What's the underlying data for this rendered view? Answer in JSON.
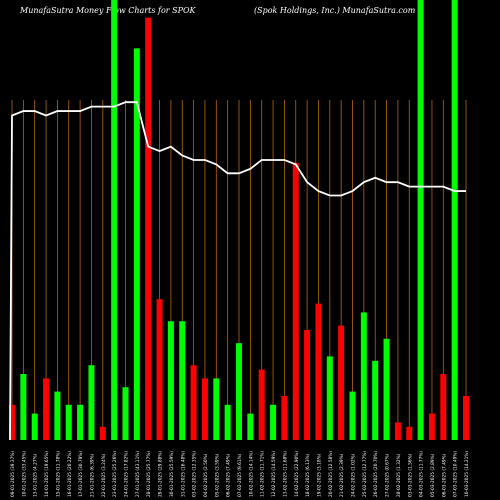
{
  "header": {
    "left": "MunafaSutra  Money Flow  Charts for SPOK",
    "right": "(Spok Holdings, Inc.) MunafaSutra.com"
  },
  "colors": {
    "background": "#000000",
    "up": "#00ff00",
    "down": "#ff0000",
    "grid": "#b8650a",
    "line": "#ffffff"
  },
  "chart_data": {
    "type": "bar",
    "ylim": [
      0,
      100
    ],
    "series": [
      {
        "values": [
          8,
          15,
          6,
          14,
          11,
          8,
          8,
          17,
          3,
          100,
          12,
          89,
          96,
          32,
          27,
          27,
          17,
          14,
          14,
          8,
          22,
          6,
          16,
          8,
          10,
          63,
          25,
          31,
          19,
          26,
          11,
          29,
          18,
          23,
          4,
          3,
          100,
          6,
          15,
          100,
          10
        ],
        "directions": [
          "down",
          "up",
          "up",
          "down",
          "up",
          "up",
          "up",
          "up",
          "down",
          "up",
          "up",
          "up",
          "down",
          "down",
          "up",
          "up",
          "down",
          "down",
          "up",
          "up",
          "up",
          "up",
          "down",
          "up",
          "down",
          "down",
          "down",
          "down",
          "up",
          "down",
          "up",
          "up",
          "up",
          "up",
          "down",
          "down",
          "up",
          "down",
          "down",
          "up",
          "down"
        ]
      },
      {
        "type": "line",
        "values": [
          73,
          74,
          74,
          73,
          74,
          74,
          74,
          75,
          75,
          75,
          76,
          76,
          66,
          65,
          66,
          64,
          63,
          63,
          62,
          60,
          60,
          61,
          63,
          63,
          63,
          62,
          58,
          56,
          55,
          55,
          56,
          58,
          59,
          58,
          58,
          57,
          57,
          57,
          57,
          56,
          56
        ]
      }
    ],
    "categories": [
      "09-01-2025 (39.37%)",
      "10-01-2025 (33.45%)",
      "13-01-2025 (4.27%)",
      "14-01-2025 (19.65%)",
      "15-01-2025 (11.78%)",
      "16-01-2025 (20.22%)",
      "17-01-2025 (30.79%)",
      "21-01-2025 (6.39%)",
      "22-01-2025 (3.24%)",
      "23-01-2025 (25.26%)",
      "24-01-2025 (17.82%)",
      "27-01-2025 (43.11%)",
      "28-01-2025 (25.77%)",
      "29-01-2025 (29.88%)",
      "30-01-2025 (25.59%)",
      "31-01-2025 (16.48%)",
      "03-02-2025 (12.35%)",
      "04-02-2025 (2.50%)",
      "05-02-2025 (3.59%)",
      "06-02-2025 (7.49%)",
      "07-02-2025 (9.61%)",
      "10-02-2025 (14.14%)",
      "11-02-2025 (11.71%)",
      "12-02-2025 (14.59%)",
      "13-02-2025 (11.68%)",
      "14-02-2025 (22.90%)",
      "18-02-2025 (6.13%)",
      "19-02-2025 (3.18%)",
      "20-02-2025 (12.58%)",
      "21-02-2025 (2.39%)",
      "24-02-2025 (1.02%)",
      "25-02-2025 (12.77%)",
      "26-02-2025 (20.70%)",
      "27-02-2025 (0.67%)",
      "28-02-2025 (1.32%)",
      "03-03-2025 (1.56%)",
      "04-03-2025 (11.77%)",
      "05-03-2025 (2.89%)",
      "06-03-2025 (7.49%)",
      "07-03-2025 (10.49%)",
      "10-03-2025 (14.21%)"
    ]
  }
}
